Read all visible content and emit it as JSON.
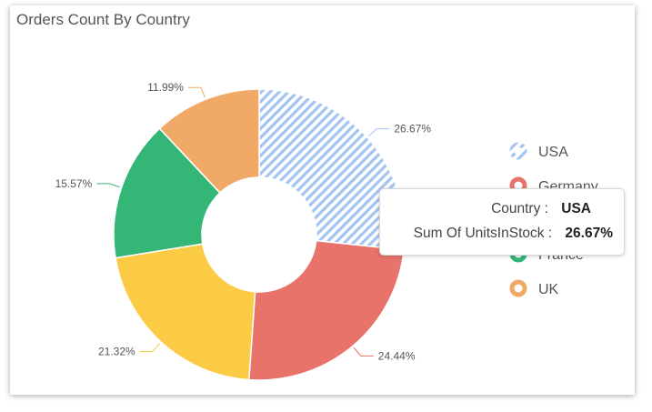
{
  "chart_data": {
    "type": "pie",
    "variant": "donut",
    "title": "Orders Count By Country",
    "slices": [
      {
        "label": "USA",
        "value": 26.67,
        "display": "26.67%",
        "color": "#a3c4f3",
        "pattern": "diagonal-stripes"
      },
      {
        "label": "Germany",
        "value": 24.44,
        "display": "24.44%",
        "color": "#e8736a"
      },
      {
        "label": "",
        "value": 21.32,
        "display": "21.32%",
        "color": "#fbcb45"
      },
      {
        "label": "France",
        "value": 15.57,
        "display": "15.57%",
        "color": "#34b676"
      },
      {
        "label": "UK",
        "value": 11.99,
        "display": "11.99%",
        "color": "#f0a967"
      }
    ],
    "legend": {
      "position": "right",
      "visible_entries": [
        "USA",
        "Germany",
        "France",
        "UK"
      ]
    }
  },
  "tooltip": {
    "row1_label": "Country :",
    "row1_value": "USA",
    "row2_label": "Sum Of UnitsInStock :",
    "row2_value": "26.67%"
  }
}
